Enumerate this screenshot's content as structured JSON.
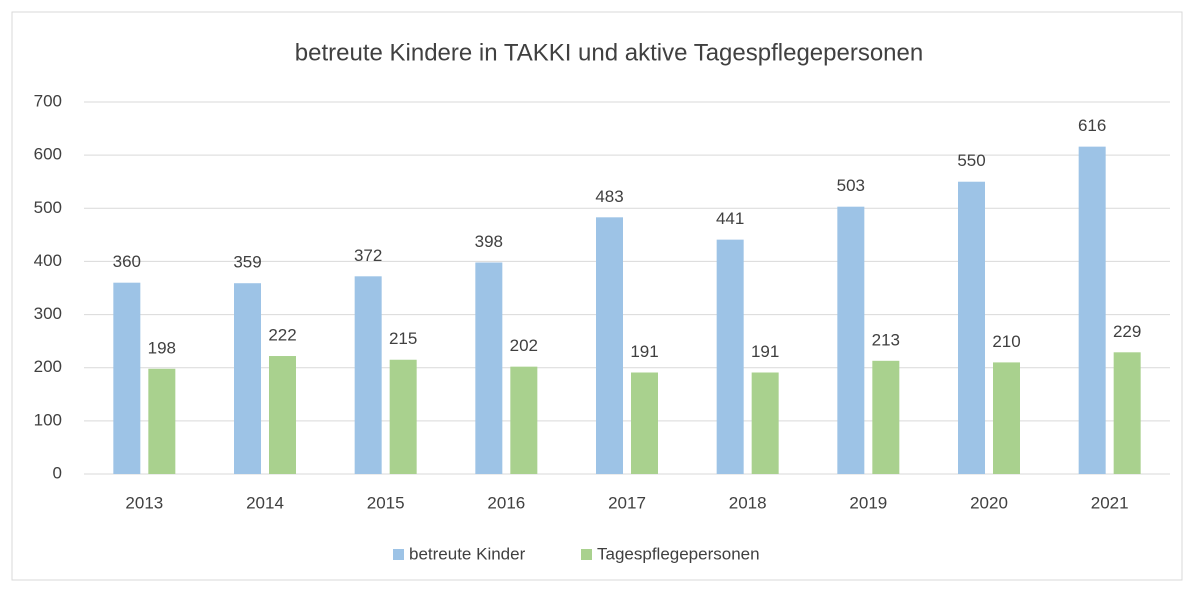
{
  "chart_data": {
    "type": "bar",
    "title": "betreute Kindere in TAKKI und aktive Tagespflegepersonen",
    "categories": [
      "2013",
      "2014",
      "2015",
      "2016",
      "2017",
      "2018",
      "2019",
      "2020",
      "2021"
    ],
    "series": [
      {
        "name": "betreute Kinder",
        "color": "#9dc3e6",
        "values": [
          360,
          359,
          372,
          398,
          483,
          441,
          503,
          550,
          616
        ]
      },
      {
        "name": "Tagespflegepersonen",
        "color": "#a9d18e",
        "values": [
          198,
          222,
          215,
          202,
          191,
          191,
          213,
          210,
          229
        ]
      }
    ],
    "ylim": [
      0,
      700
    ],
    "yticks": [
      0,
      100,
      200,
      300,
      400,
      500,
      600,
      700
    ],
    "grid": true,
    "legend": "bottom"
  }
}
